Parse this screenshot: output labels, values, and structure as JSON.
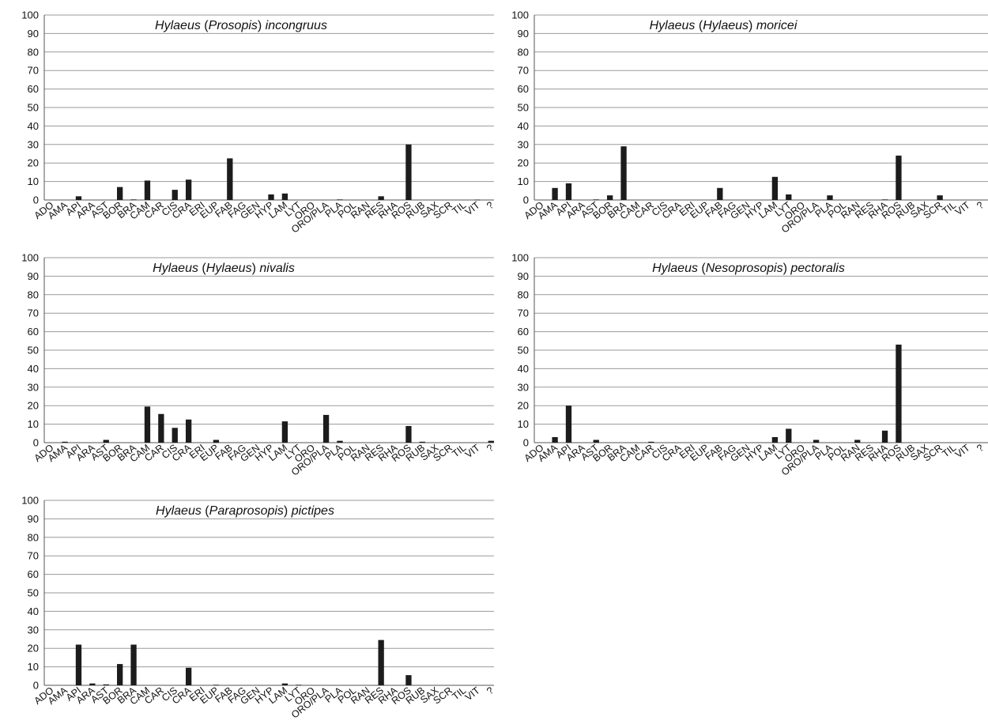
{
  "colors": {
    "bar": "#1c1c1c",
    "grid": "#9a9a9a",
    "axis": "#555555",
    "text": "#111111"
  },
  "chart_data": [
    {
      "type": "bar",
      "title_parts": [
        "Hylaeus",
        " (",
        "Prosopis",
        ") ",
        "incongruus"
      ],
      "title_italic": [
        true,
        false,
        true,
        false,
        true
      ],
      "ylim": [
        0,
        100
      ],
      "yticks": [
        0,
        10,
        20,
        30,
        40,
        50,
        60,
        70,
        80,
        90,
        100
      ],
      "grid": true,
      "categories": [
        "ADO",
        "AMA",
        "API",
        "ARA",
        "AST",
        "BOR",
        "BRA",
        "CAM",
        "CAR",
        "CIS",
        "CRA",
        "ERI",
        "EUP",
        "FAB",
        "FAG",
        "GEN",
        "HYP",
        "LAM",
        "LYT",
        "ORO",
        "ORO/PLA",
        "PLA",
        "POL",
        "RAN",
        "RES",
        "RHA",
        "ROS",
        "RUB",
        "SAX",
        "SCR",
        "TIL",
        "VIT",
        "?"
      ],
      "values": [
        0,
        0,
        2,
        0,
        0,
        7,
        0.3,
        10.5,
        0,
        5.5,
        11,
        0,
        0,
        22.5,
        0,
        0,
        3,
        3.5,
        0,
        0,
        0,
        0.3,
        0,
        0,
        2,
        0,
        30,
        0,
        0,
        0,
        0,
        0.2,
        0
      ]
    },
    {
      "type": "bar",
      "title_parts": [
        "Hylaeus",
        " (",
        "Hylaeus",
        ") ",
        "moricei"
      ],
      "title_italic": [
        true,
        false,
        true,
        false,
        true
      ],
      "ylim": [
        0,
        100
      ],
      "yticks": [
        0,
        10,
        20,
        30,
        40,
        50,
        60,
        70,
        80,
        90,
        100
      ],
      "grid": true,
      "categories": [
        "ADO",
        "AMA",
        "API",
        "ARA",
        "AST",
        "BOR",
        "BRA",
        "CAM",
        "CAR",
        "CIS",
        "CRA",
        "ERI",
        "EUP",
        "FAB",
        "FAG",
        "GEN",
        "HYP",
        "LAM",
        "LYT",
        "ORO",
        "ORO/PLA",
        "PLA",
        "POL",
        "RAN",
        "RES",
        "RHA",
        "ROS",
        "RUB",
        "SAX",
        "SCR",
        "TIL",
        "VIT",
        "?"
      ],
      "values": [
        0,
        6.5,
        9,
        0,
        0.3,
        2.5,
        29,
        0,
        0,
        0,
        0,
        0,
        0,
        6.5,
        0,
        0,
        0,
        12.5,
        3,
        0,
        0,
        2.5,
        0,
        0,
        0,
        0.3,
        24,
        0,
        0,
        2.5,
        0,
        0,
        0
      ]
    },
    {
      "type": "bar",
      "title_parts": [
        "Hylaeus",
        " (",
        "Hylaeus",
        ") ",
        "nivalis"
      ],
      "title_italic": [
        true,
        false,
        true,
        false,
        true
      ],
      "ylim": [
        0,
        100
      ],
      "yticks": [
        0,
        10,
        20,
        30,
        40,
        50,
        60,
        70,
        80,
        90,
        100
      ],
      "grid": true,
      "categories": [
        "ADO",
        "AMA",
        "API",
        "ARA",
        "AST",
        "BOR",
        "BRA",
        "CAM",
        "CAR",
        "CIS",
        "CRA",
        "ERI",
        "EUP",
        "FAB",
        "FAG",
        "GEN",
        "HYP",
        "LAM",
        "LYT",
        "ORO",
        "ORO/PLA",
        "PLA",
        "POL",
        "RAN",
        "RES",
        "RHA",
        "ROS",
        "RUB",
        "SAX",
        "SCR",
        "TIL",
        "VIT",
        "?"
      ],
      "values": [
        0,
        0.5,
        0,
        0,
        1.5,
        0,
        0,
        19.5,
        15.5,
        8,
        12.5,
        0,
        1.5,
        0,
        0,
        0,
        0,
        11.5,
        0,
        0,
        15,
        1,
        0,
        0,
        0,
        0,
        9,
        0.5,
        0,
        0,
        0,
        0,
        1
      ]
    },
    {
      "type": "bar",
      "title_parts": [
        "Hylaeus",
        " (",
        "Nesoprosopis",
        ") ",
        "pectoralis"
      ],
      "title_italic": [
        true,
        false,
        true,
        false,
        true
      ],
      "ylim": [
        0,
        100
      ],
      "yticks": [
        0,
        10,
        20,
        30,
        40,
        50,
        60,
        70,
        80,
        90,
        100
      ],
      "grid": true,
      "categories": [
        "ADO",
        "AMA",
        "API",
        "ARA",
        "AST",
        "BOR",
        "BRA",
        "CAM",
        "CAR",
        "CIS",
        "CRA",
        "ERI",
        "EUP",
        "FAB",
        "FAG",
        "GEN",
        "HYP",
        "LAM",
        "LYT",
        "ORO",
        "ORO/PLA",
        "PLA",
        "POL",
        "RAN",
        "RES",
        "RHA",
        "ROS",
        "RUB",
        "SAX",
        "SCR",
        "TIL",
        "VIT",
        "?"
      ],
      "values": [
        0,
        3,
        20,
        0,
        1.5,
        0,
        0,
        0,
        0.5,
        0,
        0,
        0,
        0,
        0,
        0,
        0,
        0,
        3,
        7.5,
        0,
        1.5,
        0,
        0,
        1.5,
        0,
        6.5,
        53,
        0,
        0,
        0,
        0,
        0,
        0
      ]
    },
    {
      "type": "bar",
      "title_parts": [
        "Hylaeus",
        " (",
        "Paraprosopis",
        ") ",
        "pictipes"
      ],
      "title_italic": [
        true,
        false,
        true,
        false,
        true
      ],
      "ylim": [
        0,
        100
      ],
      "yticks": [
        0,
        10,
        20,
        30,
        40,
        50,
        60,
        70,
        80,
        90,
        100
      ],
      "grid": true,
      "categories": [
        "ADO",
        "AMA",
        "API",
        "ARA",
        "AST",
        "BOR",
        "BRA",
        "CAM",
        "CAR",
        "CIS",
        "CRA",
        "ERI",
        "EUP",
        "FAB",
        "FAG",
        "GEN",
        "HYP",
        "LAM",
        "LYT",
        "ORO",
        "ORO/PLA",
        "PLA",
        "POL",
        "RAN",
        "RES",
        "RHA",
        "ROS",
        "RUB",
        "SAX",
        "SCR",
        "TIL",
        "VIT",
        "?"
      ],
      "values": [
        0,
        0,
        22,
        1,
        0.5,
        11.5,
        22,
        0,
        0,
        0,
        9.5,
        0,
        0.3,
        0,
        0,
        0,
        0,
        1,
        0.3,
        0,
        0,
        0,
        0,
        0,
        24.5,
        0,
        5.5,
        0,
        0,
        0,
        0,
        0,
        0
      ]
    }
  ]
}
